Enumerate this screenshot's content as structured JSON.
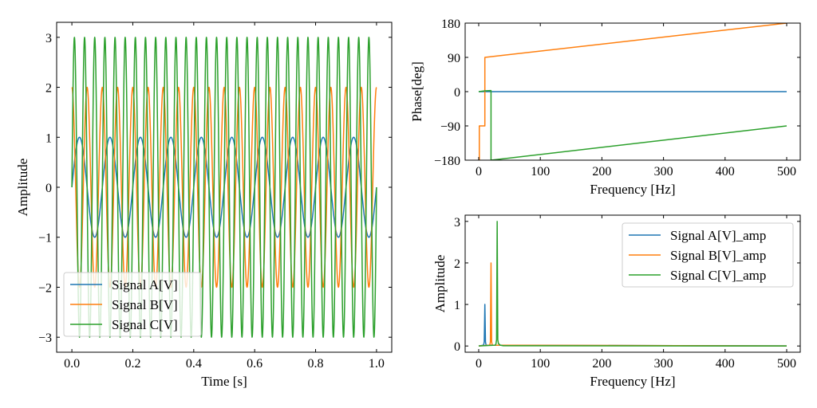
{
  "chart_data": [
    {
      "id": "time",
      "type": "line",
      "title": "",
      "xlabel": "Time [s]",
      "ylabel": "Amplitude",
      "xlim": [
        -0.05,
        1.05
      ],
      "ylim": [
        -3.3,
        3.3
      ],
      "xticks": [
        0.0,
        0.2,
        0.4,
        0.6,
        0.8,
        1.0
      ],
      "xtick_labels": [
        "0.0",
        "0.2",
        "0.4",
        "0.6",
        "0.8",
        "1.0"
      ],
      "yticks": [
        -3,
        -2,
        -1,
        0,
        1,
        2,
        3
      ],
      "ytick_labels": [
        "−3",
        "−2",
        "−1",
        "0",
        "1",
        "2",
        "3"
      ],
      "legend_position": "lower-left",
      "x_range": [
        0,
        1
      ],
      "series": [
        {
          "name": "Signal A[V]",
          "color": "#1f77b4",
          "waveform": "sin",
          "amplitude": 1,
          "frequency_hz": 10
        },
        {
          "name": "Signal B[V]",
          "color": "#ff7f0e",
          "waveform": "cos",
          "amplitude": 2,
          "frequency_hz": 20
        },
        {
          "name": "Signal C[V]",
          "color": "#2ca02c",
          "waveform": "sin",
          "amplitude": 3,
          "frequency_hz": 30
        }
      ]
    },
    {
      "id": "phase",
      "type": "line",
      "title": "",
      "xlabel": "Frequency [Hz]",
      "ylabel": "Phase[deg]",
      "xlim": [
        -22,
        522
      ],
      "ylim": [
        -180,
        180
      ],
      "xticks": [
        0,
        100,
        200,
        300,
        400,
        500
      ],
      "xtick_labels": [
        "0",
        "100",
        "200",
        "300",
        "400",
        "500"
      ],
      "yticks": [
        -180,
        -90,
        0,
        90,
        180
      ],
      "ytick_labels": [
        "−180",
        "−90",
        "0",
        "90",
        "180"
      ],
      "series": [
        {
          "name": "Signal A[V]",
          "color": "#1f77b4",
          "x": [
            0,
            9,
            10,
            30,
            31,
            500
          ],
          "y": [
            0,
            0,
            0,
            0,
            0,
            0
          ]
        },
        {
          "name": "Signal B[V]",
          "color": "#ff7f0e",
          "x": [
            0,
            1,
            1,
            9,
            10,
            10,
            500
          ],
          "y": [
            -180,
            -180,
            -90,
            -90,
            -90,
            90,
            180
          ]
        },
        {
          "name": "Signal C[V]",
          "color": "#2ca02c",
          "x": [
            0,
            10,
            19,
            20,
            20,
            500
          ],
          "y": [
            0,
            2,
            3,
            3,
            -180,
            -90
          ]
        }
      ]
    },
    {
      "id": "amplitude",
      "type": "line",
      "title": "",
      "xlabel": "Frequency [Hz]",
      "ylabel": "Amplitude",
      "xlim": [
        -22,
        522
      ],
      "ylim": [
        -0.15,
        3.15
      ],
      "xticks": [
        0,
        100,
        200,
        300,
        400,
        500
      ],
      "xtick_labels": [
        "0",
        "100",
        "200",
        "300",
        "400",
        "500"
      ],
      "yticks": [
        0,
        1,
        2,
        3
      ],
      "ytick_labels": [
        "0",
        "1",
        "2",
        "3"
      ],
      "legend_position": "upper-right",
      "series": [
        {
          "name": "Signal A[V]_amp",
          "color": "#1f77b4",
          "x": [
            0,
            8,
            9,
            10,
            11,
            12,
            500
          ],
          "y": [
            0,
            0.02,
            0.1,
            1.0,
            0.1,
            0.02,
            0
          ]
        },
        {
          "name": "Signal B[V]_amp",
          "color": "#ff7f0e",
          "x": [
            0,
            18,
            19,
            20,
            21,
            22,
            500
          ],
          "y": [
            0,
            0.02,
            0.1,
            2.0,
            0.1,
            0.02,
            0
          ]
        },
        {
          "name": "Signal C[V]_amp",
          "color": "#2ca02c",
          "x": [
            0,
            27,
            28,
            29,
            30,
            31,
            32,
            35,
            40,
            500
          ],
          "y": [
            0,
            0.02,
            0.05,
            0.15,
            3.0,
            0.15,
            0.06,
            0.02,
            0.005,
            0
          ]
        }
      ]
    }
  ]
}
